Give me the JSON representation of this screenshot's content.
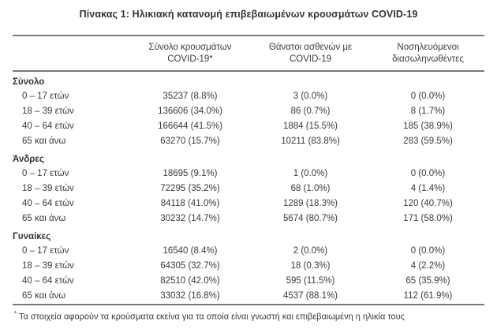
{
  "title": "Πίνακας 1: Ηλικιακή κατανομή επιβεβαιωμένων κρουσμάτων COVID-19",
  "table": {
    "column_headers": {
      "cases_line1": "Σύνολο κρουσμάτων",
      "cases_line2": "COVID-19*",
      "deaths_line1": "Θάνατοι ασθενών με",
      "deaths_line2": "COVID-19",
      "intubated_line1": "Νοσηλευόμενοι",
      "intubated_line2": "διασωληνωθέντες"
    },
    "sections": [
      {
        "header": "Σύνολο",
        "rows": [
          {
            "label": "0 – 17 ετών",
            "cells": [
              "35237 (8.8%)",
              "3 (0.0%)",
              "0 (0.0%)"
            ]
          },
          {
            "label": "18 – 39 ετών",
            "cells": [
              "136606 (34.0%)",
              "86 (0.7%)",
              "8 (1.7%)"
            ]
          },
          {
            "label": "40 – 64 ετών",
            "cells": [
              "166644 (41.5%)",
              "1884 (15.5%)",
              "185 (38.9%)"
            ]
          },
          {
            "label": "65 και άνω",
            "cells": [
              "63270 (15.7%)",
              "10211 (83.8%)",
              "283 (59.5%)"
            ]
          }
        ]
      },
      {
        "header": "Άνδρες",
        "rows": [
          {
            "label": "0 – 17 ετών",
            "cells": [
              "18695 (9.1%)",
              "1 (0.0%)",
              "0 (0.0%)"
            ]
          },
          {
            "label": "18 – 39 ετών",
            "cells": [
              "72295 (35.2%)",
              "68 (1.0%)",
              "4 (1.4%)"
            ]
          },
          {
            "label": "40 – 64 ετών",
            "cells": [
              "84118 (41.0%)",
              "1289 (18.3%)",
              "120 (40.7%)"
            ]
          },
          {
            "label": "65 και άνω",
            "cells": [
              "30232 (14.7%)",
              "5674 (80.7%)",
              "171 (58.0%)"
            ]
          }
        ]
      },
      {
        "header": "Γυναίκες",
        "rows": [
          {
            "label": "0 – 17 ετών",
            "cells": [
              "16540 (8.4%)",
              "2 (0.0%)",
              "0 (0.0%)"
            ]
          },
          {
            "label": "18 – 39 ετών",
            "cells": [
              "64305 (32.7%)",
              "18 (0.3%)",
              "4 (2.2%)"
            ]
          },
          {
            "label": "40 – 64 ετών",
            "cells": [
              "82510 (42.0%)",
              "595 (11.5%)",
              "65 (35.9%)"
            ]
          },
          {
            "label": "65 και άνω",
            "cells": [
              "33032 (16.8%)",
              "4537 (88.1%)",
              "112 (61.9%)"
            ]
          }
        ]
      }
    ],
    "footnote_marker": "*",
    "footnote_text": " Τα στοιχεία αφορούν τα κρούσματα εκείνα για τα οποία είναι γνωστή και επιβεβαιωμένη η ηλικία τους"
  },
  "colors": {
    "text": "#3a3a3a",
    "rule": "#7b7b7b",
    "background": "#ffffff"
  }
}
